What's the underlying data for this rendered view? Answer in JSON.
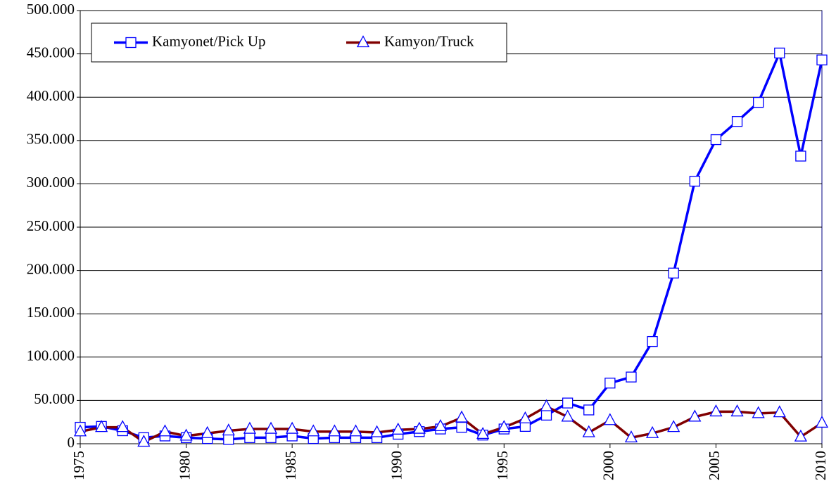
{
  "chart_data": {
    "type": "line",
    "x": [
      1975,
      1976,
      1977,
      1978,
      1979,
      1980,
      1981,
      1982,
      1983,
      1984,
      1985,
      1986,
      1987,
      1988,
      1989,
      1990,
      1991,
      1992,
      1993,
      1994,
      1995,
      1996,
      1997,
      1998,
      1999,
      2000,
      2001,
      2002,
      2003,
      2004,
      2005,
      2006,
      2007,
      2008,
      2009,
      2010
    ],
    "series": [
      {
        "name": "Kamyonet/Pick Up",
        "color": "#0000ff",
        "marker": "square",
        "values": [
          19000,
          20000,
          15000,
          7000,
          9000,
          7000,
          6000,
          5000,
          7000,
          7000,
          9000,
          6000,
          7000,
          7000,
          7000,
          11000,
          14000,
          17000,
          19000,
          10000,
          17000,
          20000,
          33000,
          47000,
          39000,
          70000,
          77000,
          118000,
          197000,
          303000,
          351000,
          372000,
          394000,
          451000,
          332000,
          443000
        ]
      },
      {
        "name": "Kamyon/Truck",
        "color": "#800000",
        "marker": "triangle",
        "values": [
          14000,
          19000,
          19000,
          2000,
          14000,
          9000,
          12000,
          15000,
          17000,
          17000,
          17000,
          14000,
          14000,
          14000,
          13000,
          16000,
          17000,
          20000,
          30000,
          11000,
          19000,
          29000,
          43000,
          31000,
          13000,
          27000,
          7000,
          12000,
          19000,
          31000,
          37000,
          37000,
          35000,
          36000,
          8000,
          24000
        ]
      }
    ],
    "marker_edge_color": "#0000ff",
    "xlim": [
      1975,
      2010
    ],
    "xticks": [
      1975,
      1980,
      1985,
      1990,
      1995,
      2000,
      2005,
      2010
    ],
    "ylim": [
      0,
      500000
    ],
    "yticks": [
      0,
      {
        "value": 50000,
        "label": "50.000"
      },
      {
        "value": 100000,
        "label": "100.000"
      },
      {
        "value": 150000,
        "label": "150.000"
      },
      {
        "value": 200000,
        "label": "200.000"
      },
      {
        "value": 250000,
        "label": "250.000"
      },
      {
        "value": 300000,
        "label": "300.000"
      },
      {
        "value": 350000,
        "label": "350.000"
      },
      {
        "value": 400000,
        "label": "400.000"
      },
      {
        "value": 450000,
        "label": "450.000"
      },
      {
        "value": 500000,
        "label": "500.000"
      }
    ],
    "grid": true,
    "legend": "upper left"
  }
}
